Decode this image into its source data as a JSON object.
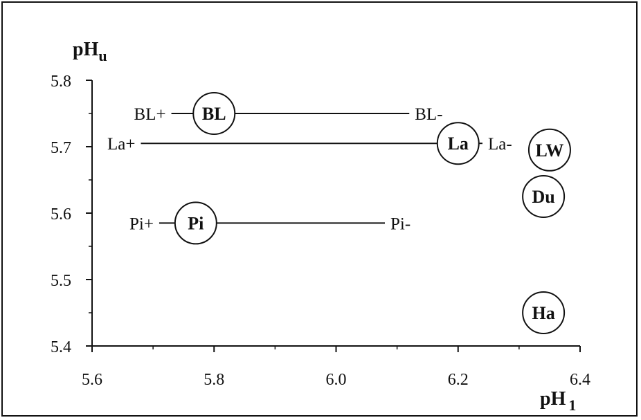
{
  "chart_data": {
    "type": "scatter",
    "title": "",
    "xlabel": {
      "main": "pH",
      "sub": "1"
    },
    "ylabel": {
      "main": "pH",
      "sub": "u"
    },
    "xlim": [
      5.6,
      6.4
    ],
    "ylim": [
      5.4,
      5.8
    ],
    "xticks": [
      "5.6",
      "5.8",
      "6.0",
      "6.2",
      "6.4"
    ],
    "yticks": [
      "5.4",
      "5.5",
      "5.6",
      "5.7",
      "5.8"
    ],
    "grid": false,
    "points": [
      {
        "label": "BL",
        "x": 5.8,
        "y": 5.75
      },
      {
        "label": "La",
        "x": 6.2,
        "y": 5.705
      },
      {
        "label": "LW",
        "x": 6.35,
        "y": 5.695
      },
      {
        "label": "Du",
        "x": 6.34,
        "y": 5.625
      },
      {
        "label": "Pi",
        "x": 5.77,
        "y": 5.585
      },
      {
        "label": "Ha",
        "x": 6.34,
        "y": 5.45
      }
    ],
    "ranges": [
      {
        "y": 5.75,
        "x_min": 5.73,
        "x_max": 6.12,
        "min_label": "BL+",
        "max_label": "BL-"
      },
      {
        "y": 5.705,
        "x_min": 5.68,
        "x_max": 6.24,
        "min_label": "La+",
        "max_label": "La-"
      },
      {
        "y": 5.585,
        "x_min": 5.71,
        "x_max": 6.08,
        "min_label": "Pi+",
        "max_label": "Pi-"
      }
    ]
  }
}
